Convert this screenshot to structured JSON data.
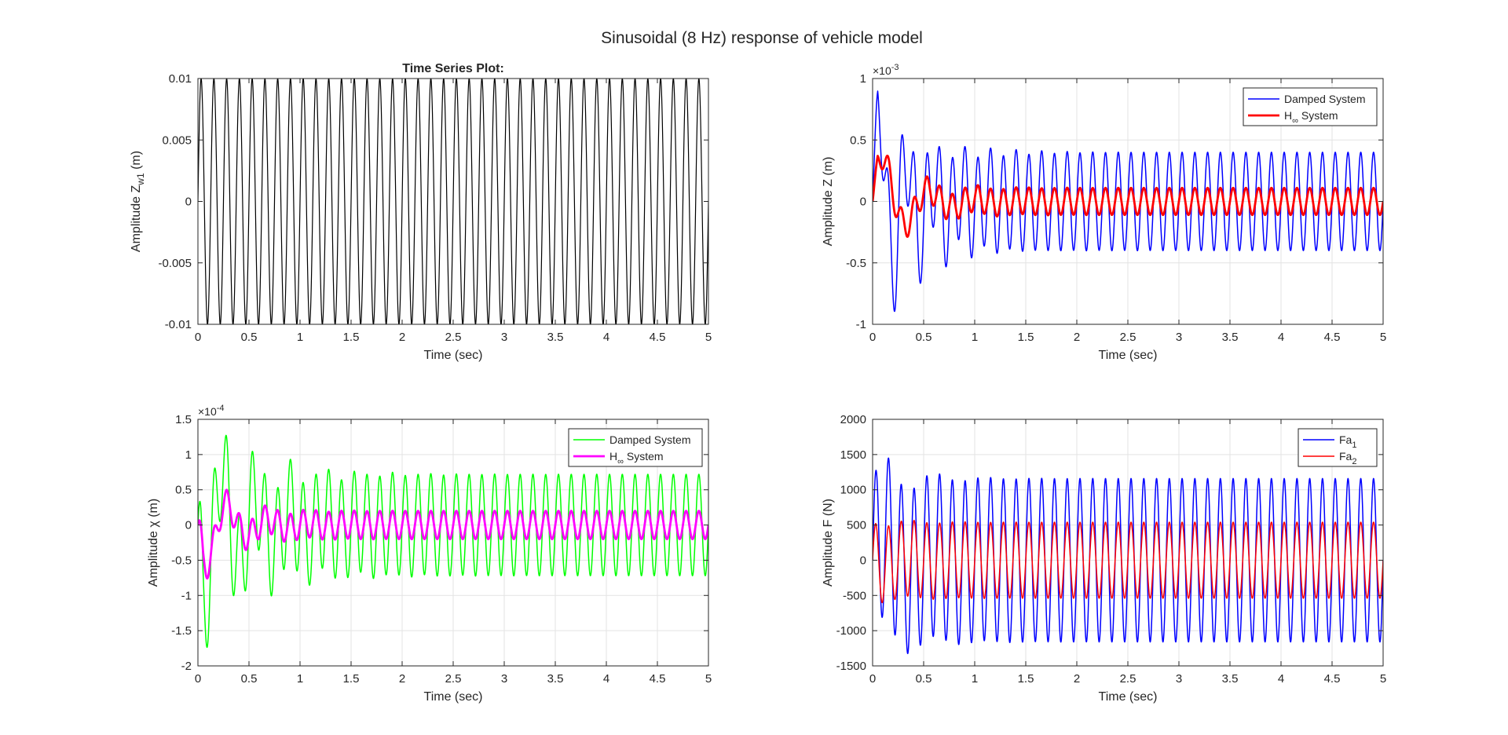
{
  "figure": {
    "title": "Sinusoidal (8 Hz) response of vehicle model"
  },
  "chart_data": [
    {
      "id": "zw1",
      "type": "line",
      "title": "Time Series Plot:",
      "xlabel": "Time (sec)",
      "ylabel": "Amplitude Z",
      "ylabel_sub": "w1",
      "ylabel_suffix": " (m)",
      "exponent_label": "",
      "xlim": [
        0,
        5
      ],
      "ylim": [
        -0.01,
        0.01
      ],
      "xticks": [
        0,
        0.5,
        1,
        1.5,
        2,
        2.5,
        3,
        3.5,
        4,
        4.5,
        5
      ],
      "xticklabels": [
        "0",
        "0.5",
        "1",
        "1.5",
        "2",
        "2.5",
        "3",
        "3.5",
        "4",
        "4.5",
        "5"
      ],
      "yticks": [
        -0.01,
        -0.005,
        0,
        0.005,
        0.01
      ],
      "yticklabels": [
        "-0.01",
        "-0.005",
        "0",
        "0.005",
        "0.01"
      ],
      "grid": false,
      "legend": null,
      "series": [
        {
          "color": "#000000",
          "width": 1.2,
          "model": {
            "kind": "sine",
            "amp": 0.01,
            "freq": 8,
            "t0": 0
          }
        }
      ]
    },
    {
      "id": "z",
      "type": "line",
      "title": "",
      "xlabel": "Time (sec)",
      "ylabel": "Amplitude Z (m)",
      "ylabel_sub": "",
      "ylabel_suffix": "",
      "exponent_label": "×10",
      "exponent_power": "-3",
      "xlim": [
        0,
        5
      ],
      "ylim": [
        -1,
        1
      ],
      "xticks": [
        0,
        0.5,
        1,
        1.5,
        2,
        2.5,
        3,
        3.5,
        4,
        4.5,
        5
      ],
      "xticklabels": [
        "0",
        "0.5",
        "1",
        "1.5",
        "2",
        "2.5",
        "3",
        "3.5",
        "4",
        "4.5",
        "5"
      ],
      "yticks": [
        -1,
        -0.5,
        0,
        0.5,
        1
      ],
      "yticklabels": [
        "-1",
        "-0.5",
        "0",
        "0.5",
        "1"
      ],
      "grid": true,
      "legend": {
        "placement": "top-right",
        "entries": [
          {
            "label": "Damped System",
            "sub": "",
            "suffix": ""
          },
          {
            "label": "H",
            "sub": "∞",
            "suffix": " System"
          }
        ]
      },
      "series": [
        {
          "name": "Damped System",
          "color": "#0000ff",
          "width": 1.5,
          "model": {
            "kind": "transient",
            "ss_amp": 0.4,
            "ss_offset": 0,
            "freq": 8,
            "tr_amp": 0.9,
            "tr_freq": 3.8,
            "tr_decay": 2.6,
            "tr_phase": -0.2
          }
        },
        {
          "name": "H∞ System",
          "color": "#ff0000",
          "width": 2.8,
          "model": {
            "kind": "transient",
            "ss_amp": 0.11,
            "ss_offset": 0,
            "freq": 8,
            "tr_amp": 0.5,
            "tr_freq": 2.2,
            "tr_decay": 3.0,
            "tr_phase": 0.1
          }
        }
      ]
    },
    {
      "id": "chi",
      "type": "line",
      "title": "",
      "xlabel": "Time (sec)",
      "ylabel": "Amplitude χ (m)",
      "ylabel_sub": "",
      "ylabel_suffix": "",
      "exponent_label": "×10",
      "exponent_power": "-4",
      "xlim": [
        0,
        5
      ],
      "ylim": [
        -2,
        1.5
      ],
      "xticks": [
        0,
        0.5,
        1,
        1.5,
        2,
        2.5,
        3,
        3.5,
        4,
        4.5,
        5
      ],
      "xticklabels": [
        "0",
        "0.5",
        "1",
        "1.5",
        "2",
        "2.5",
        "3",
        "3.5",
        "4",
        "4.5",
        "5"
      ],
      "yticks": [
        -2,
        -1.5,
        -1,
        -0.5,
        0,
        0.5,
        1,
        1.5
      ],
      "yticklabels": [
        "-2",
        "-1.5",
        "-1",
        "-0.5",
        "0",
        "0.5",
        "1",
        "1.5"
      ],
      "grid": true,
      "legend": {
        "placement": "top-right",
        "entries": [
          {
            "label": "Damped System",
            "sub": "",
            "suffix": ""
          },
          {
            "label": "H",
            "sub": "∞",
            "suffix": " System"
          }
        ]
      },
      "series": [
        {
          "name": "Damped System",
          "color": "#00ff00",
          "width": 1.5,
          "model": {
            "kind": "transient",
            "ss_amp": 0.72,
            "ss_offset": 0,
            "freq": 8,
            "tr_amp": -1.3,
            "tr_freq": 3.0,
            "tr_decay": 2.0,
            "tr_phase": 0.2
          }
        },
        {
          "name": "H∞ System",
          "color": "#ff00ff",
          "width": 2.8,
          "model": {
            "kind": "transient",
            "ss_amp": 0.2,
            "ss_offset": 0,
            "freq": 8,
            "tr_amp": -0.75,
            "tr_freq": 2.5,
            "tr_decay": 3.2,
            "tr_phase": 0.1
          }
        }
      ]
    },
    {
      "id": "force",
      "type": "line",
      "title": "",
      "xlabel": "Time (sec)",
      "ylabel": "Amplitude F (N)",
      "ylabel_sub": "",
      "ylabel_suffix": "",
      "exponent_label": "",
      "xlim": [
        0,
        5
      ],
      "ylim": [
        -1500,
        2000
      ],
      "xticks": [
        0,
        0.5,
        1,
        1.5,
        2,
        2.5,
        3,
        3.5,
        4,
        4.5,
        5
      ],
      "xticklabels": [
        "0",
        "0.5",
        "1",
        "1.5",
        "2",
        "2.5",
        "3",
        "3.5",
        "4",
        "4.5",
        "5"
      ],
      "yticks": [
        -1500,
        -1000,
        -500,
        0,
        500,
        1000,
        1500,
        2000
      ],
      "yticklabels": [
        "-1500",
        "-1000",
        "-500",
        "0",
        "500",
        "1000",
        "1500",
        "2000"
      ],
      "grid": true,
      "legend": {
        "placement": "top-right",
        "entries": [
          {
            "label": "Fa",
            "sub": "1",
            "suffix": ""
          },
          {
            "label": "Fa",
            "sub": "2",
            "suffix": ""
          }
        ]
      },
      "series": [
        {
          "name": "Fa1",
          "color": "#0000ff",
          "width": 1.5,
          "model": {
            "kind": "transient",
            "ss_amp": 1160,
            "ss_offset": 0,
            "freq": 8,
            "tr_amp": 500,
            "tr_freq": 2.0,
            "tr_decay": 3.0,
            "tr_phase": 0.0
          }
        },
        {
          "name": "Fa2",
          "color": "#ff0000",
          "width": 1.5,
          "model": {
            "kind": "transient",
            "ss_amp": 540,
            "ss_offset": 0,
            "freq": 8,
            "tr_amp": -90,
            "tr_freq": 2.0,
            "tr_decay": 3.0,
            "tr_phase": 0.0
          }
        }
      ]
    }
  ]
}
